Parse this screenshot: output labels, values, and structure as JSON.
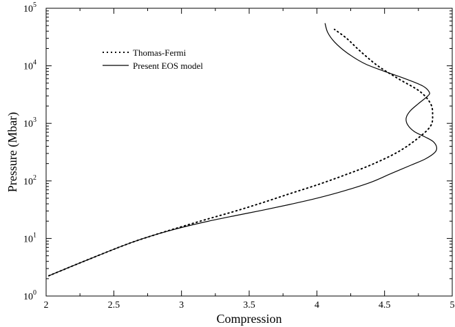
{
  "chart_data": {
    "type": "line",
    "title": "",
    "xlabel": "Compression",
    "ylabel": "Pressure (Mbar)",
    "xlim": [
      2,
      5
    ],
    "ylim": [
      1,
      100000
    ],
    "yscale": "log",
    "grid": false,
    "legend_position": "top-left",
    "x_ticks": [
      {
        "value": 2,
        "label": "2"
      },
      {
        "value": 2.5,
        "label": "2.5"
      },
      {
        "value": 3,
        "label": "3"
      },
      {
        "value": 3.5,
        "label": "3.5"
      },
      {
        "value": 4,
        "label": "4"
      },
      {
        "value": 4.5,
        "label": "4.5"
      },
      {
        "value": 5,
        "label": "5"
      }
    ],
    "y_ticks": [
      {
        "value": 1,
        "base": "10",
        "exp": "0"
      },
      {
        "value": 10,
        "base": "10",
        "exp": "1"
      },
      {
        "value": 100,
        "base": "10",
        "exp": "2"
      },
      {
        "value": 1000,
        "base": "10",
        "exp": "3"
      },
      {
        "value": 10000,
        "base": "10",
        "exp": "4"
      },
      {
        "value": 100000,
        "base": "10",
        "exp": "5"
      }
    ],
    "series": [
      {
        "name": "Thomas-Fermi",
        "style": "dotted",
        "color": "#000000",
        "points": [
          [
            2.02,
            2.25
          ],
          [
            2.3,
            4.2
          ],
          [
            2.6,
            8.0
          ],
          [
            2.8,
            11.5
          ],
          [
            3.0,
            16.0
          ],
          [
            3.2,
            22.0
          ],
          [
            3.4,
            30.0
          ],
          [
            3.6,
            42.0
          ],
          [
            3.8,
            60.0
          ],
          [
            4.0,
            85.0
          ],
          [
            4.2,
            125.0
          ],
          [
            4.4,
            190.0
          ],
          [
            4.6,
            320.0
          ],
          [
            4.75,
            560.0
          ],
          [
            4.84,
            900.0
          ],
          [
            4.855,
            1400.0
          ],
          [
            4.84,
            2200.0
          ],
          [
            4.76,
            3600.0
          ],
          [
            4.6,
            6000.0
          ],
          [
            4.45,
            10000.0
          ],
          [
            4.32,
            18000.0
          ],
          [
            4.22,
            30000.0
          ],
          [
            4.13,
            43000.0
          ]
        ]
      },
      {
        "name": "Present EOS model",
        "style": "solid",
        "color": "#000000",
        "points": [
          [
            2.02,
            2.25
          ],
          [
            2.3,
            4.2
          ],
          [
            2.6,
            8.0
          ],
          [
            2.8,
            11.5
          ],
          [
            3.0,
            15.5
          ],
          [
            3.2,
            20.0
          ],
          [
            3.4,
            25.0
          ],
          [
            3.6,
            31.0
          ],
          [
            3.8,
            39.0
          ],
          [
            4.0,
            50.0
          ],
          [
            4.2,
            67.0
          ],
          [
            4.4,
            95.0
          ],
          [
            4.55,
            135.0
          ],
          [
            4.7,
            190.0
          ],
          [
            4.8,
            240.0
          ],
          [
            4.87,
            310.0
          ],
          [
            4.885,
            380.0
          ],
          [
            4.86,
            480.0
          ],
          [
            4.8,
            580.0
          ],
          [
            4.72,
            720.0
          ],
          [
            4.67,
            950.0
          ],
          [
            4.66,
            1250.0
          ],
          [
            4.69,
            1650.0
          ],
          [
            4.75,
            2200.0
          ],
          [
            4.82,
            3000.0
          ],
          [
            4.83,
            3500.0
          ],
          [
            4.78,
            4500.0
          ],
          [
            4.65,
            6000.0
          ],
          [
            4.5,
            8000.0
          ],
          [
            4.35,
            11000.0
          ],
          [
            4.22,
            17000.0
          ],
          [
            4.13,
            26000.0
          ],
          [
            4.08,
            38000.0
          ],
          [
            4.06,
            55000.0
          ]
        ]
      }
    ]
  }
}
